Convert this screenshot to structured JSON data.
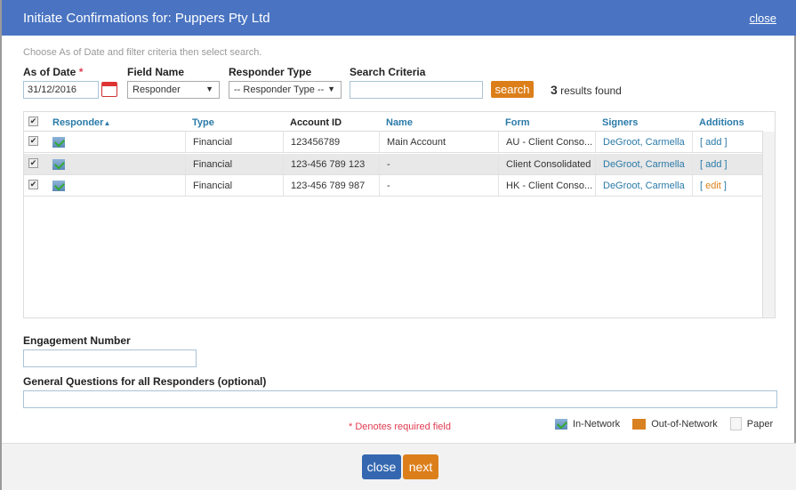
{
  "dialog": {
    "title": "Initiate Confirmations for: Puppers Pty Ltd",
    "close_link": "close"
  },
  "hint": "Choose As of Date and filter criteria then select search.",
  "filters": {
    "as_of_date_label": "As of Date",
    "required_mark": "*",
    "as_of_date_value": "31/12/2016",
    "field_name_label": "Field Name",
    "field_name_value": "Responder",
    "responder_type_label": "Responder Type",
    "responder_type_value": "-- Responder Type --",
    "search_criteria_label": "Search Criteria",
    "search_criteria_value": "",
    "search_button": "search",
    "results_count": "3",
    "results_text": "results found"
  },
  "table": {
    "headers": [
      "Responder",
      "Type",
      "Account ID",
      "Name",
      "Form",
      "Signers",
      "Additions"
    ],
    "sort_indicator": "▲",
    "rows": [
      {
        "checked": true,
        "responder_icon": "in-network-icon",
        "type": "Financial",
        "account_id": "123456789",
        "name": "Main Account",
        "form": "AU - Client Conso...",
        "signers": "DeGroot, Carmella",
        "additions": "add"
      },
      {
        "checked": true,
        "responder_icon": "in-network-icon",
        "type": "Financial",
        "account_id": "123-456 789 123",
        "name": "-",
        "form": "Client Consolidated",
        "signers": "DeGroot, Carmella",
        "additions": "add"
      },
      {
        "checked": true,
        "responder_icon": "in-network-icon",
        "type": "Financial",
        "account_id": "123-456 789 987",
        "name": "-",
        "form": "HK - Client Conso...",
        "signers": "DeGroot, Carmella",
        "additions": "edit"
      }
    ]
  },
  "engagement": {
    "label": "Engagement Number",
    "value": ""
  },
  "questions": {
    "label": "General Questions for all Responders (optional)",
    "value": ""
  },
  "required_note": "* Denotes required field",
  "legend": [
    "In-Network",
    "Out-of-Network",
    "Paper"
  ],
  "footer": {
    "close_button": "close",
    "next_button": "next"
  },
  "colors": {
    "header": "#4a74c2",
    "accent_orange": "#dc7f1a",
    "close_blue": "#3467b0",
    "link": "#2a7aa8"
  }
}
